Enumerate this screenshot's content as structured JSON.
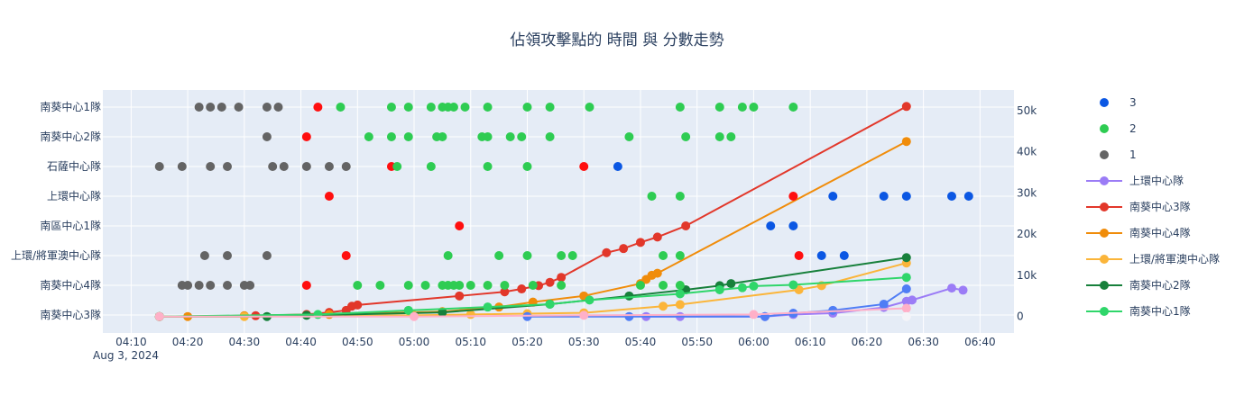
{
  "chart_data": {
    "type": "scatter",
    "title": "佔領攻擊點的 時間 與 分數走勢",
    "x_tick_labels": [
      "04:10",
      "04:20",
      "04:30",
      "04:40",
      "04:50",
      "05:00",
      "05:10",
      "05:20",
      "05:30",
      "05:40",
      "05:50",
      "06:00",
      "06:10",
      "06:20",
      "06:30",
      "06:40"
    ],
    "x_date_label": "Aug 3, 2024",
    "xlim": [
      "04:05",
      "06:46"
    ],
    "y_left_categories": [
      "南葵中心3隊",
      "南葵中心4隊",
      "上環/將軍澳中心隊",
      "南區中心1隊",
      "上環中心隊",
      "石薩中心隊",
      "南葵中心2隊",
      "南葵中心1隊"
    ],
    "y_right_tick_labels": [
      "0",
      "10k",
      "20k",
      "30k",
      "40k",
      "50k"
    ],
    "y_right_range": [
      -4000,
      55000
    ],
    "legend_position": "right",
    "level_colors": {
      "3": "#0b57e3",
      "2": "#2ecc52",
      "1": "#646464"
    },
    "team_colors": {
      "上環中心隊": "#9b7cf6",
      "南葵中心3隊": "#e2372a",
      "南葵中心4隊": "#f08c0a",
      "上環/將軍澳中心隊": "#fbb53a",
      "南葵中心2隊": "#17803b",
      "南葵中心1隊": "#2fd66a"
    },
    "capture_points": [
      {
        "team": "南葵中心1隊",
        "level": "1",
        "times": [
          "04:22",
          "04:24",
          "04:26",
          "04:29",
          "04:34",
          "04:36"
        ]
      },
      {
        "team": "南葵中心1隊",
        "level": "red",
        "times": [
          "04:43"
        ]
      },
      {
        "team": "南葵中心1隊",
        "level": "2",
        "times": [
          "04:47",
          "04:56",
          "04:59",
          "05:03",
          "05:05",
          "05:06",
          "05:07",
          "05:09",
          "05:13",
          "05:20",
          "05:24",
          "05:31",
          "05:47",
          "05:54",
          "05:58",
          "06:00",
          "06:07"
        ]
      },
      {
        "team": "南葵中心2隊",
        "level": "1",
        "times": [
          "04:34"
        ]
      },
      {
        "team": "南葵中心2隊",
        "level": "red",
        "times": [
          "04:41"
        ]
      },
      {
        "team": "南葵中心2隊",
        "level": "2",
        "times": [
          "04:52",
          "04:56",
          "04:59",
          "05:04",
          "05:05",
          "05:12",
          "05:13",
          "05:17",
          "05:19",
          "05:24",
          "05:38",
          "05:48",
          "05:54",
          "05:56"
        ]
      },
      {
        "team": "石薩中心隊",
        "level": "1",
        "times": [
          "04:15",
          "04:19",
          "04:24",
          "04:27",
          "04:35",
          "04:37",
          "04:41",
          "04:45",
          "04:48"
        ]
      },
      {
        "team": "石薩中心隊",
        "level": "red",
        "times": [
          "04:56",
          "05:30"
        ]
      },
      {
        "team": "石薩中心隊",
        "level": "2",
        "times": [
          "04:57",
          "05:03",
          "05:13",
          "05:20"
        ]
      },
      {
        "team": "石薩中心隊",
        "level": "3",
        "times": [
          "05:36"
        ]
      },
      {
        "team": "上環中心隊",
        "level": "red",
        "times": [
          "04:45",
          "06:07"
        ]
      },
      {
        "team": "上環中心隊",
        "level": "2",
        "times": [
          "05:42",
          "05:47"
        ]
      },
      {
        "team": "上環中心隊",
        "level": "3",
        "times": [
          "06:14",
          "06:23",
          "06:27",
          "06:35",
          "06:38"
        ]
      },
      {
        "team": "南區中心1隊",
        "level": "red",
        "times": [
          "05:08"
        ]
      },
      {
        "team": "南區中心1隊",
        "level": "3",
        "times": [
          "06:03",
          "06:07"
        ]
      },
      {
        "team": "上環/將軍澳中心隊",
        "level": "1",
        "times": [
          "04:23",
          "04:27",
          "04:34"
        ]
      },
      {
        "team": "上環/將軍澳中心隊",
        "level": "red",
        "times": [
          "04:48",
          "06:08"
        ]
      },
      {
        "team": "上環/將軍澳中心隊",
        "level": "2",
        "times": [
          "05:06",
          "05:15",
          "05:20",
          "05:26",
          "05:28",
          "05:44",
          "05:47"
        ]
      },
      {
        "team": "上環/將軍澳中心隊",
        "level": "3",
        "times": [
          "06:12",
          "06:16"
        ]
      },
      {
        "team": "南葵中心4隊",
        "level": "1",
        "times": [
          "04:19",
          "04:20",
          "04:22",
          "04:24",
          "04:27",
          "04:30",
          "04:31"
        ]
      },
      {
        "team": "南葵中心4隊",
        "level": "red",
        "times": [
          "04:41"
        ]
      },
      {
        "team": "南葵中心4隊",
        "level": "2",
        "times": [
          "04:50",
          "04:54",
          "04:59",
          "05:02",
          "05:05",
          "05:06",
          "05:07",
          "05:08",
          "05:10",
          "05:13",
          "05:16",
          "05:21",
          "05:26",
          "05:40",
          "05:44",
          "05:47"
        ]
      }
    ],
    "score_series": [
      {
        "name": "上環中心隊",
        "points": [
          [
            "05:41",
            0
          ],
          [
            "05:47",
            0
          ],
          [
            "06:02",
            0
          ],
          [
            "06:07",
            500
          ],
          [
            "06:14",
            800
          ],
          [
            "06:23",
            2200
          ],
          [
            "06:27",
            3700
          ],
          [
            "06:28",
            4000
          ],
          [
            "06:35",
            6900
          ],
          [
            "06:37",
            6400
          ]
        ]
      },
      {
        "name": "南葵中心3隊",
        "points": [
          [
            "04:15",
            0
          ],
          [
            "04:32",
            200
          ],
          [
            "04:41",
            500
          ],
          [
            "04:45",
            1000
          ],
          [
            "04:48",
            1500
          ],
          [
            "04:49",
            2500
          ],
          [
            "04:50",
            2800
          ],
          [
            "05:08",
            5000
          ],
          [
            "05:16",
            6000
          ],
          [
            "05:19",
            6700
          ],
          [
            "05:22",
            7500
          ],
          [
            "05:24",
            8300
          ],
          [
            "05:26",
            9500
          ],
          [
            "05:34",
            15500
          ],
          [
            "05:37",
            16500
          ],
          [
            "05:40",
            18000
          ],
          [
            "05:43",
            19300
          ],
          [
            "05:48",
            22000
          ],
          [
            "06:27",
            51000
          ]
        ]
      },
      {
        "name": "南葵中心4隊",
        "points": [
          [
            "04:15",
            0
          ],
          [
            "04:20",
            0
          ],
          [
            "04:30",
            200
          ],
          [
            "04:45",
            500
          ],
          [
            "05:05",
            1200
          ],
          [
            "05:15",
            2300
          ],
          [
            "05:21",
            3500
          ],
          [
            "05:30",
            5000
          ],
          [
            "05:40",
            8000
          ],
          [
            "05:41",
            9000
          ],
          [
            "05:42",
            10000
          ],
          [
            "05:43",
            10500
          ],
          [
            "06:27",
            42500
          ]
        ]
      },
      {
        "name": "上環/將軍澳中心隊",
        "points": [
          [
            "04:15",
            0
          ],
          [
            "04:30",
            0
          ],
          [
            "05:00",
            300
          ],
          [
            "05:10",
            500
          ],
          [
            "05:20",
            700
          ],
          [
            "05:30",
            900
          ],
          [
            "05:44",
            2500
          ],
          [
            "05:47",
            2900
          ],
          [
            "06:08",
            6500
          ],
          [
            "06:12",
            7500
          ],
          [
            "06:27",
            13000
          ]
        ]
      },
      {
        "name": "南葵中心2隊",
        "points": [
          [
            "04:15",
            0
          ],
          [
            "04:34",
            0
          ],
          [
            "04:41",
            300
          ],
          [
            "05:05",
            1000
          ],
          [
            "05:24",
            3000
          ],
          [
            "05:38",
            5000
          ],
          [
            "05:48",
            6500
          ],
          [
            "05:54",
            7500
          ],
          [
            "05:56",
            8000
          ],
          [
            "06:27",
            14300
          ]
        ]
      },
      {
        "name": "南葵中心1隊",
        "points": [
          [
            "04:15",
            0
          ],
          [
            "04:43",
            500
          ],
          [
            "04:59",
            1500
          ],
          [
            "05:13",
            2300
          ],
          [
            "05:24",
            3000
          ],
          [
            "05:31",
            4000
          ],
          [
            "05:47",
            5500
          ],
          [
            "05:54",
            6500
          ],
          [
            "05:58",
            7000
          ],
          [
            "06:00",
            7400
          ],
          [
            "06:07",
            7700
          ],
          [
            "06:27",
            9500
          ]
        ]
      },
      {
        "name": "blue",
        "color": "#4f7df5",
        "points": [
          [
            "05:20",
            0
          ],
          [
            "05:38",
            0
          ],
          [
            "06:02",
            0
          ],
          [
            "06:07",
            800
          ],
          [
            "06:14",
            1500
          ],
          [
            "06:23",
            3000
          ],
          [
            "06:27",
            6700
          ]
        ]
      },
      {
        "name": "pink",
        "color": "#ffb0c8",
        "points": [
          [
            "04:15",
            0
          ],
          [
            "05:00",
            0
          ],
          [
            "05:30",
            300
          ],
          [
            "06:00",
            500
          ],
          [
            "06:27",
            2000
          ]
        ]
      },
      {
        "name": "white",
        "color": "#f4f4f8",
        "points": [
          [
            "06:27",
            0
          ]
        ]
      }
    ],
    "legend": [
      {
        "label": "3",
        "key": "3",
        "type": "marker"
      },
      {
        "label": "2",
        "key": "2",
        "type": "marker"
      },
      {
        "label": "1",
        "key": "1",
        "type": "marker"
      },
      {
        "label": "上環中心隊",
        "key": "上環中心隊",
        "type": "line"
      },
      {
        "label": "南葵中心3隊",
        "key": "南葵中心3隊",
        "type": "line"
      },
      {
        "label": "南葵中心4隊",
        "key": "南葵中心4隊",
        "type": "line"
      },
      {
        "label": "上環/將軍澳中心隊",
        "key": "上環/將軍澳中心隊",
        "type": "line"
      },
      {
        "label": "南葵中心2隊",
        "key": "南葵中心2隊",
        "type": "line"
      },
      {
        "label": "南葵中心1隊",
        "key": "南葵中心1隊",
        "type": "line"
      }
    ]
  }
}
